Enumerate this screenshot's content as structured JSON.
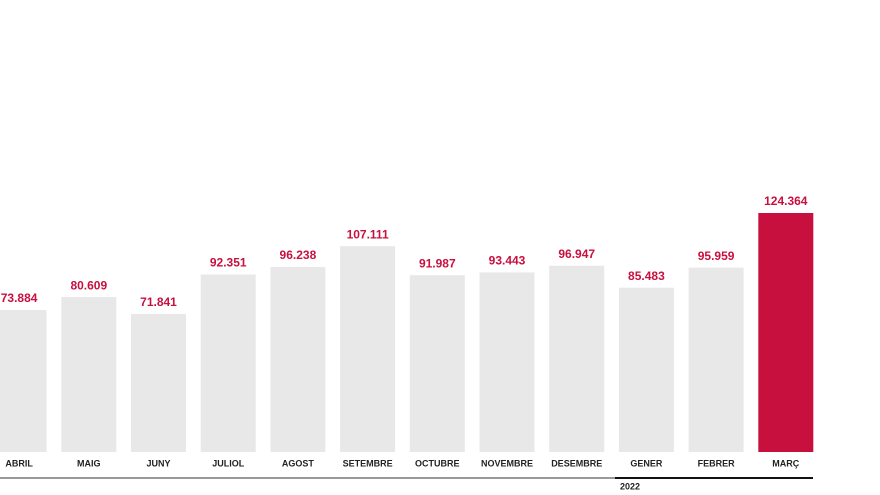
{
  "chart_data": {
    "type": "bar",
    "categories": [
      "ABRIL",
      "MAIG",
      "JUNY",
      "JULIOL",
      "AGOST",
      "SETEMBRE",
      "OCTUBRE",
      "NOVEMBRE",
      "DESEMBRE",
      "GENER",
      "FEBRER",
      "MARÇ"
    ],
    "values": [
      73884,
      80609,
      71841,
      92351,
      96238,
      107111,
      91987,
      93443,
      96947,
      85483,
      95959,
      124364
    ],
    "value_labels": [
      "73.884",
      "80.609",
      "71.841",
      "92.351",
      "96.238",
      "107.111",
      "91.987",
      "93.443",
      "96.947",
      "85.483",
      "95.959",
      "124.364"
    ],
    "colors": [
      "#e8e8e8",
      "#e8e8e8",
      "#e8e8e8",
      "#e8e8e8",
      "#e8e8e8",
      "#e8e8e8",
      "#e8e8e8",
      "#e8e8e8",
      "#e8e8e8",
      "#e8e8e8",
      "#e8e8e8",
      "#c8103e"
    ],
    "label_color": "#c8103e",
    "annotation": "2022"
  }
}
